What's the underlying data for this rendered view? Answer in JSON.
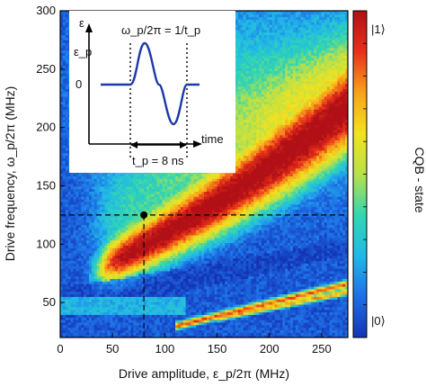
{
  "chart_data": {
    "type": "heatmap",
    "title": "",
    "xlabel": "Drive amplitude, ε_p/2π (MHz)",
    "ylabel": "Drive frequency, ω_p/2π (MHz)",
    "xlim": [
      0,
      275
    ],
    "ylim": [
      20,
      300
    ],
    "x_ticks": [
      "0",
      "50",
      "100",
      "150",
      "200",
      "250"
    ],
    "x_tick_values": [
      0,
      50,
      100,
      150,
      200,
      250
    ],
    "y_ticks": [
      "50",
      "100",
      "150",
      "200",
      "250",
      "300"
    ],
    "y_tick_values": [
      50,
      100,
      150,
      200,
      250,
      300
    ],
    "colorbar": {
      "label": "CQB - state",
      "top_label": "|1⟩",
      "bottom_label": "|0⟩",
      "colors": [
        "#1434b4",
        "#1e6fe6",
        "#21b8e8",
        "#33d6b0",
        "#b8e14a",
        "#f2e21f",
        "#f7a21c",
        "#e8301a",
        "#b01016"
      ]
    },
    "marker": {
      "x": 80,
      "y": 125
    },
    "features": [
      {
        "name": "main resonance band",
        "x_from": 20,
        "x_to": 275,
        "y_from": 85,
        "y_to": 230,
        "peak_x": 85,
        "peak_y": 100
      },
      {
        "name": "low-frequency multi-photon bands",
        "x_from": 110,
        "x_to": 275,
        "y_from": 28,
        "y_to": 62
      }
    ],
    "inset": {
      "title": "ω_p/2π = 1/t_p",
      "y_axis_label": "ε",
      "y_tick_label": "ε_p",
      "zero_label": "0",
      "x_axis_label": "time",
      "pulse_label": "t_p = 8 ns"
    }
  }
}
